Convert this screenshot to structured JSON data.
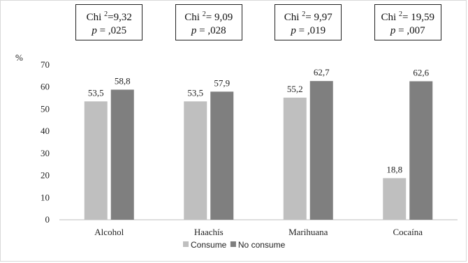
{
  "chart_data": {
    "type": "bar",
    "ylabel": "%",
    "ylim": [
      0,
      70
    ],
    "yticks": [
      0,
      10,
      20,
      30,
      40,
      50,
      60,
      70
    ],
    "categories": [
      "Alcohol",
      "Haachís",
      "Marihuana",
      "Cocaína"
    ],
    "series": [
      {
        "name": "Consume",
        "color": "#bfbfbf",
        "values": [
          53.5,
          53.5,
          55.2,
          18.8
        ],
        "labels": [
          "53,5",
          "53,5",
          "55,2",
          "18,8"
        ]
      },
      {
        "name": "No consume",
        "color": "#7f7f7f",
        "values": [
          58.8,
          57.9,
          62.7,
          62.6
        ],
        "labels": [
          "58,8",
          "57,9",
          "62,7",
          "62,6"
        ]
      }
    ],
    "annotations": [
      {
        "chi_label": "Chi",
        "superscript": "2",
        "chi_value": "=9,32",
        "p_label": "p",
        "p_value": " = ,025"
      },
      {
        "chi_label": "Chi",
        "superscript": "2",
        "chi_value": "= 9,09",
        "p_label": "p",
        "p_value": " = ,028"
      },
      {
        "chi_label": "Chi",
        "superscript": "2",
        "chi_value": "= 9,97",
        "p_label": "p",
        "p_value": " = ,019"
      },
      {
        "chi_label": "Chi",
        "superscript": "2",
        "chi_value": "= 19,59",
        "p_label": "p",
        "p_value": " = ,007"
      }
    ],
    "legend_position": "bottom"
  }
}
